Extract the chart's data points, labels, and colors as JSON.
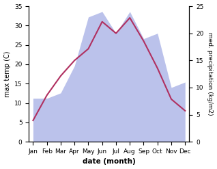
{
  "months": [
    "Jan",
    "Feb",
    "Mar",
    "Apr",
    "May",
    "Jun",
    "Jul",
    "Aug",
    "Sep",
    "Oct",
    "Nov",
    "Dec"
  ],
  "month_positions": [
    0,
    1,
    2,
    3,
    4,
    5,
    6,
    7,
    8,
    9,
    10,
    11
  ],
  "temperature": [
    5.5,
    12.0,
    17.0,
    21.0,
    24.0,
    31.0,
    28.0,
    32.0,
    26.0,
    19.0,
    11.0,
    8.0
  ],
  "precipitation": [
    8.0,
    8.0,
    9.0,
    14.0,
    23.0,
    24.0,
    20.0,
    24.0,
    19.0,
    20.0,
    10.0,
    11.0
  ],
  "temp_color": "#b03060",
  "precip_color": "#b0b8e8",
  "temp_ylim": [
    0,
    35
  ],
  "precip_ylim": [
    0,
    25
  ],
  "temp_ylabel": "max temp (C)",
  "precip_ylabel": "med. precipitation (kg/m2)",
  "xlabel": "date (month)",
  "temp_yticks": [
    0,
    5,
    10,
    15,
    20,
    25,
    30,
    35
  ],
  "precip_yticks": [
    0,
    5,
    10,
    15,
    20,
    25
  ]
}
